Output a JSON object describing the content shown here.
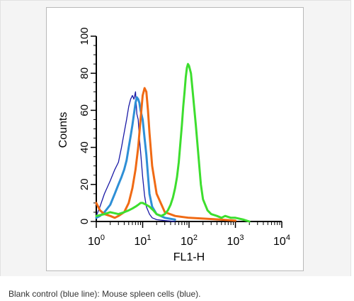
{
  "chart_data": {
    "type": "line",
    "xlabel": "FL1-H",
    "ylabel": "Counts",
    "xscale": "log",
    "xlim": [
      1,
      10000
    ],
    "ylim": [
      0,
      100
    ],
    "x_tick_labels": [
      {
        "base": "10",
        "exp": "0"
      },
      {
        "base": "10",
        "exp": "1"
      },
      {
        "base": "10",
        "exp": "2"
      },
      {
        "base": "10",
        "exp": "3"
      },
      {
        "base": "10",
        "exp": "4"
      }
    ],
    "y_ticks": [
      0,
      20,
      40,
      60,
      80,
      100
    ],
    "y_tick_labels": [
      "0",
      "20",
      "40",
      "60",
      "80",
      "100"
    ],
    "grid": false,
    "series": [
      {
        "color": "#1a1aa6",
        "x": [
          1.0,
          1.2,
          1.5,
          2.0,
          2.5,
          3.0,
          3.5,
          4.0,
          4.5,
          5.0,
          5.5,
          6.0,
          6.5,
          7.0,
          7.5,
          8.0,
          8.5,
          9.0,
          10.0,
          11.0,
          12.0,
          14.0,
          16.0,
          20.0,
          30.0,
          50.0
        ],
        "y": [
          3,
          8,
          15,
          22,
          28,
          32,
          40,
          48,
          55,
          62,
          66,
          68,
          66,
          70,
          58,
          55,
          45,
          38,
          24,
          14,
          8,
          4,
          2,
          1,
          0.5,
          0
        ]
      },
      {
        "color": "#2e8fd6",
        "x": [
          1.0,
          1.2,
          1.5,
          2.0,
          2.5,
          3.0,
          3.5,
          4.0,
          4.5,
          5.0,
          5.5,
          6.0,
          6.5,
          7.0,
          7.5,
          8.0,
          8.5,
          9.0,
          10.0,
          11.0,
          12.0,
          13.0,
          14.0,
          16.0,
          20.0,
          30.0,
          50.0
        ],
        "y": [
          2,
          3,
          5,
          9,
          15,
          20,
          24,
          28,
          33,
          40,
          46,
          52,
          58,
          64,
          67,
          66,
          64,
          60,
          55,
          45,
          36,
          25,
          15,
          8,
          4,
          2,
          1
        ]
      },
      {
        "color": "#f06a14",
        "x": [
          1.0,
          1.2,
          1.5,
          2.0,
          2.5,
          3.0,
          4.0,
          5.0,
          6.0,
          7.0,
          8.0,
          9.0,
          10.0,
          11.0,
          12.0,
          13.0,
          14.0,
          16.0,
          20.0,
          30.0,
          50.0,
          100.0,
          500.0,
          1000.0
        ],
        "y": [
          10,
          6,
          4,
          3,
          2,
          3,
          5,
          10,
          18,
          28,
          40,
          55,
          68,
          72,
          70,
          60,
          48,
          30,
          15,
          5,
          3,
          2,
          1,
          0.5
        ]
      },
      {
        "color": "#3dde2e",
        "x": [
          1.0,
          1.5,
          2.0,
          3.0,
          4.0,
          5.0,
          6.0,
          7.0,
          8.0,
          9.0,
          10.0,
          12.0,
          14.0,
          17.0,
          20.0,
          25.0,
          30.0,
          35.0,
          40.0,
          45.0,
          50.0,
          55.0,
          60.0,
          65.0,
          70.0,
          75.0,
          80.0,
          85.0,
          90.0,
          95.0,
          100.0,
          110.0,
          120.0,
          140.0,
          160.0,
          180.0,
          200.0,
          250.0,
          300.0,
          400.0,
          500.0,
          600.0,
          800.0,
          1000.0,
          1500.0,
          2000.0
        ],
        "y": [
          3,
          4,
          5,
          4,
          5,
          6,
          7,
          8,
          9,
          10,
          10,
          9,
          8,
          6,
          4,
          3,
          4,
          6,
          9,
          13,
          18,
          24,
          32,
          42,
          52,
          62,
          70,
          78,
          83,
          85,
          84,
          80,
          70,
          52,
          35,
          20,
          12,
          6,
          4,
          3,
          2,
          3,
          2,
          2,
          1,
          0
        ]
      }
    ]
  },
  "caption": "Blank control (blue line): Mouse spleen cells (blue)."
}
